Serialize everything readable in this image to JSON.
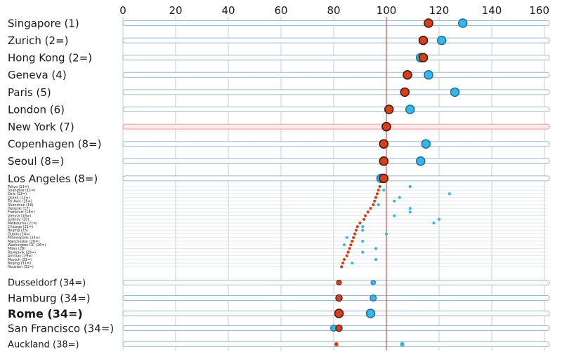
{
  "chart_data": {
    "type": "scatter",
    "xlim": [
      0,
      160
    ],
    "x_ticks": [
      0,
      20,
      40,
      60,
      80,
      100,
      120,
      140,
      160
    ],
    "axis_position": "top",
    "reference_line": 100,
    "grid": true,
    "series": [
      {
        "color": "#d2401c"
      },
      {
        "color": "#38b6e8"
      }
    ],
    "rows": [
      {
        "label": "Singapore (1)",
        "red": 116,
        "blue": 129,
        "tier": "major"
      },
      {
        "label": "Zurich (2=)",
        "red": 114,
        "blue": 121,
        "tier": "major"
      },
      {
        "label": "Hong Kong (2=)",
        "red": 114,
        "blue": 113,
        "tier": "major"
      },
      {
        "label": "Geneva (4)",
        "red": 108,
        "blue": 116,
        "tier": "major"
      },
      {
        "label": "Paris (5)",
        "red": 107,
        "blue": 126,
        "tier": "major"
      },
      {
        "label": "London (6)",
        "red": 101,
        "blue": 109,
        "tier": "major"
      },
      {
        "label": "New York (7)",
        "red": 100,
        "blue": 100,
        "tier": "major",
        "highlight": true
      },
      {
        "label": "Copenhagen (8=)",
        "red": 99,
        "blue": 115,
        "tier": "major"
      },
      {
        "label": "Seoul (8=)",
        "red": 99,
        "blue": 113,
        "tier": "major"
      },
      {
        "label": "Los Angeles (8=)",
        "red": 99,
        "blue": 98,
        "tier": "major"
      },
      {
        "label": "Tokyo (11=)",
        "red": 97.5,
        "blue": 109,
        "tier": "mini"
      },
      {
        "label": "Shanghai (11=)",
        "red": 97,
        "blue": 99,
        "tier": "mini"
      },
      {
        "label": "Oslo (13=)",
        "red": 96.5,
        "blue": 124,
        "tier": "mini"
      },
      {
        "label": "Osaka (13=)",
        "red": 96,
        "blue": 105,
        "tier": "mini"
      },
      {
        "label": "Tel Aviv (16=)",
        "red": 95.5,
        "blue": 103,
        "tier": "mini"
      },
      {
        "label": "Shenzhen (16)",
        "red": 95,
        "blue": 97,
        "tier": "mini"
      },
      {
        "label": "Helsinki (17)",
        "red": 94,
        "blue": 109,
        "tier": "mini"
      },
      {
        "label": "Frankfurt (18=)",
        "red": 93,
        "blue": 109,
        "tier": "mini"
      },
      {
        "label": "Vienna (18=)",
        "red": 92,
        "blue": 103,
        "tier": "mini"
      },
      {
        "label": "Sydney (20)",
        "red": 91.5,
        "blue": 120,
        "tier": "mini"
      },
      {
        "label": "Melbourne (21=)",
        "red": 90,
        "blue": 118,
        "tier": "mini"
      },
      {
        "label": "Chicago (21=)",
        "red": 89,
        "blue": 91,
        "tier": "mini"
      },
      {
        "label": "Beijing (23)",
        "red": 88.5,
        "blue": 91,
        "tier": "mini"
      },
      {
        "label": "Dublin (24=)",
        "red": 88,
        "blue": 100,
        "tier": "mini"
      },
      {
        "label": "Minneapolis (24=)",
        "red": 87.5,
        "blue": 85,
        "tier": "mini"
      },
      {
        "label": "Manchester (26=)",
        "red": 87,
        "blue": 91,
        "tier": "mini"
      },
      {
        "label": "Washington DC (26=)",
        "red": 86.5,
        "blue": 84,
        "tier": "mini"
      },
      {
        "label": "Milan (28)",
        "red": 86,
        "blue": 96,
        "tier": "mini"
      },
      {
        "label": "Reykjavik (29=)",
        "red": 85.5,
        "blue": 91,
        "tier": "mini"
      },
      {
        "label": "Amman (29=)",
        "red": 85,
        "blue": 85,
        "tier": "mini"
      },
      {
        "label": "Munich (31=)",
        "red": 84,
        "blue": 96,
        "tier": "mini"
      },
      {
        "label": "Beijing (31=)",
        "red": 83.5,
        "blue": 87,
        "tier": "mini"
      },
      {
        "label": "Houston (31=)",
        "red": 83,
        "blue": 83,
        "tier": "mini"
      },
      {
        "label": "Dusseldorf (34=)",
        "red": 82,
        "blue": 95,
        "tier": "mid"
      },
      {
        "label": "Hamburg (34=)",
        "red": 82,
        "blue": 95,
        "tier": "mid"
      },
      {
        "label": "Rome (34=)",
        "red": 82,
        "blue": 94,
        "tier": "bold"
      },
      {
        "label": "San Francisco (34=)",
        "red": 82,
        "blue": 80,
        "tier": "mid"
      },
      {
        "label": "Auckland (38=)",
        "red": 81,
        "blue": 106,
        "tier": "small"
      }
    ]
  }
}
